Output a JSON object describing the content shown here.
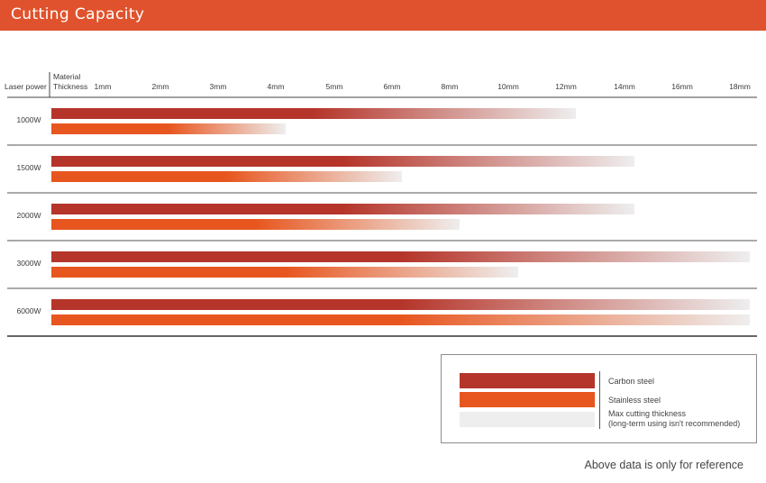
{
  "header": {
    "title": "Cutting Capacity"
  },
  "chart_data": {
    "type": "bar",
    "title": "Cutting Capacity",
    "row_header": "Laser power",
    "column_header": [
      "Material",
      "Thickness"
    ],
    "x_ticks": [
      "1mm",
      "2mm",
      "3mm",
      "4mm",
      "5mm",
      "6mm",
      "8mm",
      "10mm",
      "12mm",
      "14mm",
      "16mm",
      "18mm"
    ],
    "categories": [
      "1000W",
      "1500W",
      "2000W",
      "3000W",
      "6000W"
    ],
    "series": [
      {
        "name": "Carbon steel",
        "color": "#b5352a",
        "values": [
          "12mm",
          "14mm",
          "14mm",
          "18mm",
          "18mm"
        ]
      },
      {
        "name": "Stainless steel",
        "color": "#e8561f",
        "values": [
          "4mm",
          "6mm",
          "8mm",
          "10mm",
          "18mm"
        ]
      }
    ],
    "fade_color": "#eeeeee"
  },
  "legend": {
    "items": [
      {
        "label": "Carbon steel",
        "color": "#b5352a"
      },
      {
        "label": "Stainless steel",
        "color": "#e8561f"
      },
      {
        "label": "Max cutting thickness",
        "label2": "(long-term using isn't recommended)",
        "color": "#eeeeee"
      }
    ]
  },
  "footnote": "Above data is only for reference"
}
